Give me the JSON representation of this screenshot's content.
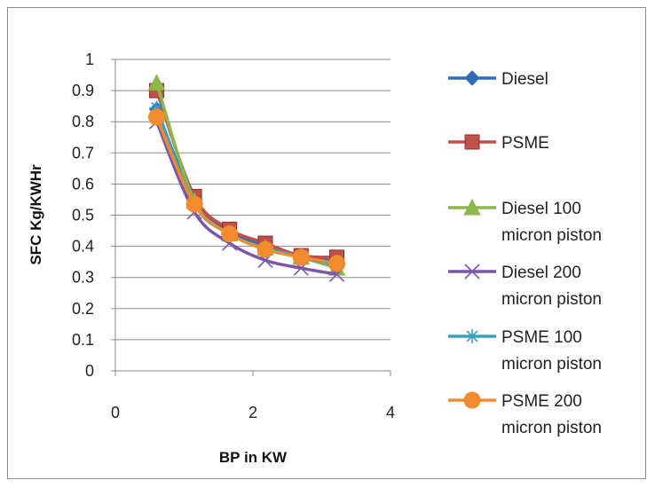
{
  "chart_data": {
    "type": "line",
    "xlabel": "BP in KW",
    "ylabel": "SFC Kg/KWHr",
    "xlim": [
      0,
      4
    ],
    "ylim": [
      0,
      1
    ],
    "xticks": [
      "0",
      "2",
      "4"
    ],
    "yticks": [
      "0",
      "0.1",
      "0.2",
      "0.3",
      "0.4",
      "0.5",
      "0.6",
      "0.7",
      "0.8",
      "0.9",
      "1"
    ],
    "grid": "horizontal",
    "legend_position": "right",
    "series": [
      {
        "name": "Diesel",
        "color": "#2f6db5",
        "marker": "diamond",
        "x": [
          0.6,
          1.15,
          1.66,
          2.18,
          2.7,
          3.22
        ],
        "y": [
          0.84,
          0.55,
          0.45,
          0.4,
          0.37,
          0.35
        ]
      },
      {
        "name": "PSME",
        "color": "#c0504d",
        "marker": "square",
        "x": [
          0.6,
          1.15,
          1.66,
          2.18,
          2.7,
          3.22
        ],
        "y": [
          0.9,
          0.56,
          0.455,
          0.41,
          0.37,
          0.365
        ]
      },
      {
        "name": "Diesel 100 micron piston",
        "color": "#8cb84a",
        "marker": "triangle",
        "x": [
          0.6,
          1.15,
          1.66,
          2.18,
          2.7,
          3.22
        ],
        "y": [
          0.925,
          0.545,
          0.44,
          0.395,
          0.365,
          0.33
        ]
      },
      {
        "name": "Diesel 200 micron piston",
        "color": "#7b56a8",
        "marker": "x",
        "x": [
          0.6,
          1.15,
          1.66,
          2.18,
          2.7,
          3.22
        ],
        "y": [
          0.8,
          0.51,
          0.41,
          0.355,
          0.33,
          0.31
        ]
      },
      {
        "name": "PSME 100 micron piston",
        "color": "#3aa0c0",
        "marker": "star",
        "x": [
          0.6,
          1.15,
          1.66,
          2.18,
          2.7,
          3.22
        ],
        "y": [
          0.845,
          0.535,
          0.44,
          0.395,
          0.365,
          0.34
        ]
      },
      {
        "name": "PSME 200 micron piston",
        "color": "#f28a2e",
        "marker": "circle",
        "x": [
          0.6,
          1.15,
          1.66,
          2.18,
          2.7,
          3.22
        ],
        "y": [
          0.815,
          0.535,
          0.44,
          0.39,
          0.365,
          0.345
        ]
      }
    ]
  }
}
